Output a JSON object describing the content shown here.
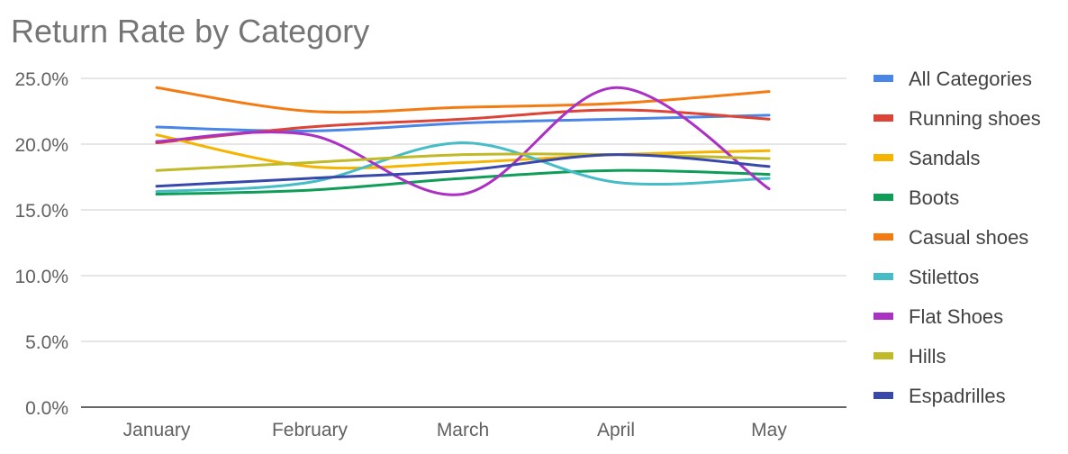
{
  "chart_data": {
    "type": "line",
    "title": "Return Rate by Category",
    "xlabel": "",
    "ylabel": "",
    "categories": [
      "January",
      "February",
      "March",
      "April",
      "May"
    ],
    "yticks": [
      "0.0%",
      "5.0%",
      "10.0%",
      "15.0%",
      "20.0%",
      "25.0%"
    ],
    "ylim": [
      0,
      25
    ],
    "grid": true,
    "legend_position": "right",
    "smooth": true,
    "series": [
      {
        "name": "All Categories",
        "color": "#4a86e8",
        "values": [
          21.3,
          21.0,
          21.6,
          21.9,
          22.2
        ]
      },
      {
        "name": "Running shoes",
        "color": "#db4437",
        "values": [
          20.1,
          21.3,
          21.9,
          22.6,
          21.9
        ]
      },
      {
        "name": "Sandals",
        "color": "#f4b400",
        "values": [
          20.7,
          18.3,
          18.6,
          19.2,
          19.5
        ]
      },
      {
        "name": "Boots",
        "color": "#0f9d58",
        "values": [
          16.2,
          16.5,
          17.4,
          18.0,
          17.7
        ]
      },
      {
        "name": "Casual shoes",
        "color": "#f47a12",
        "values": [
          24.3,
          22.5,
          22.8,
          23.1,
          24.0
        ]
      },
      {
        "name": "Stilettos",
        "color": "#46bdc6",
        "values": [
          16.4,
          17.1,
          20.1,
          17.1,
          17.4
        ]
      },
      {
        "name": "Flat Shoes",
        "color": "#ab30c4",
        "values": [
          20.2,
          20.7,
          16.2,
          24.3,
          16.6
        ]
      },
      {
        "name": "Hills",
        "color": "#c0ba28",
        "values": [
          18.0,
          18.6,
          19.2,
          19.2,
          18.9
        ]
      },
      {
        "name": "Espadrilles",
        "color": "#3949ab",
        "values": [
          16.8,
          17.4,
          18.0,
          19.2,
          18.3
        ]
      }
    ]
  }
}
